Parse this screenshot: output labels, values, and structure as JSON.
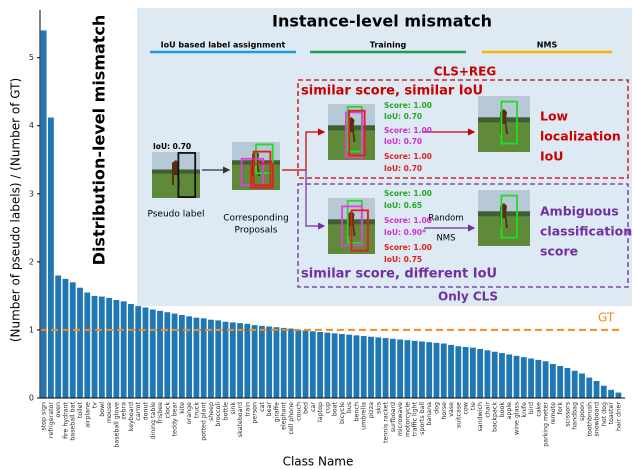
{
  "chart_data": {
    "type": "bar",
    "y_label": "(Number of pseudo labels) / (Number of GT)",
    "x_label": "Class Name",
    "annotation": "Distribution-level  mismatch",
    "categories": [
      "stop sign",
      "refrigerator",
      "oven",
      "fire hydrant",
      "baseball bat",
      "toilet",
      "airplane",
      "tv",
      "bowl",
      "mouse",
      "baseball glove",
      "zebra",
      "keyboard",
      "carrot",
      "donut",
      "dining table",
      "frisbee",
      "clock",
      "teddy bear",
      "kite",
      "orange",
      "truck",
      "potted plant",
      "sheep",
      "broccoli",
      "bottle",
      "sink",
      "skateboard",
      "train",
      "person",
      "cat",
      "bear",
      "giraffe",
      "elephant",
      "cell phone",
      "couch",
      "bed",
      "car",
      "laptop",
      "cup",
      "boat",
      "bicycle",
      "bus",
      "bench",
      "umbrella",
      "pizza",
      "skis",
      "tennis racket",
      "surfboard",
      "microwave",
      "motorcycle",
      "traffic light",
      "sports ball",
      "banana",
      "dog",
      "horse",
      "vase",
      "suitcase",
      "cow",
      "tie",
      "sandwich",
      "chair",
      "backpack",
      "book",
      "apple",
      "wine glass",
      "knife",
      "bird",
      "cake",
      "parking meter",
      "remote",
      "fork",
      "scissors",
      "handbag",
      "spoon",
      "toothbrush",
      "snowboard",
      "hot dog",
      "toaster",
      "hair drier"
    ],
    "values": [
      5.4,
      4.12,
      1.8,
      1.75,
      1.7,
      1.62,
      1.55,
      1.5,
      1.49,
      1.47,
      1.44,
      1.42,
      1.38,
      1.35,
      1.33,
      1.3,
      1.28,
      1.26,
      1.24,
      1.22,
      1.2,
      1.18,
      1.17,
      1.15,
      1.14,
      1.12,
      1.11,
      1.1,
      1.09,
      1.07,
      1.06,
      1.05,
      1.04,
      1.03,
      1.02,
      1.0,
      0.99,
      0.98,
      0.97,
      0.96,
      0.95,
      0.94,
      0.93,
      0.92,
      0.91,
      0.9,
      0.89,
      0.88,
      0.87,
      0.86,
      0.85,
      0.84,
      0.83,
      0.82,
      0.81,
      0.8,
      0.78,
      0.76,
      0.75,
      0.74,
      0.72,
      0.7,
      0.68,
      0.66,
      0.64,
      0.62,
      0.6,
      0.58,
      0.56,
      0.54,
      0.5,
      0.47,
      0.44,
      0.4,
      0.36,
      0.3,
      0.25,
      0.18,
      0.12,
      0.08
    ],
    "color": "#1f77b4",
    "ylim": [
      0,
      5.7
    ],
    "yticks": [
      0,
      1,
      2,
      3,
      4,
      5
    ],
    "reference_line": {
      "value": 1,
      "label": "GT",
      "color": "#f58a1f"
    }
  },
  "diagram": {
    "title": "Instance-level mismatch",
    "stages": [
      "IoU based label assignment",
      "Training",
      "NMS"
    ],
    "pseudo_iou": "IoU: 0.70",
    "pseudo_label": "Pseudo label",
    "proposals": [
      "Corresponding",
      "Proposals"
    ],
    "top_group": {
      "tag": "CLS+REG",
      "title": "similar score, similar IoU",
      "scores": [
        [
          "Score: 1.00",
          "IoU: 0.70"
        ],
        [
          "Score: 1.00",
          "IoU: 0.70"
        ],
        [
          "Score: 1.00",
          "IoU: 0.70"
        ]
      ],
      "result": [
        "Low",
        "localization",
        "IoU"
      ]
    },
    "bottom_group": {
      "tag": "Only CLS",
      "title": "similar score, different IoU",
      "scores": [
        [
          "Score: 1.00",
          "IoU: 0.65"
        ],
        [
          "Score: 1.00",
          "IoU: 0.90*"
        ],
        [
          "Score: 1.00",
          "IoU: 0.75"
        ]
      ],
      "nms": [
        "Random",
        "NMS"
      ],
      "result": [
        "Ambiguous",
        "classification",
        "score"
      ]
    }
  }
}
